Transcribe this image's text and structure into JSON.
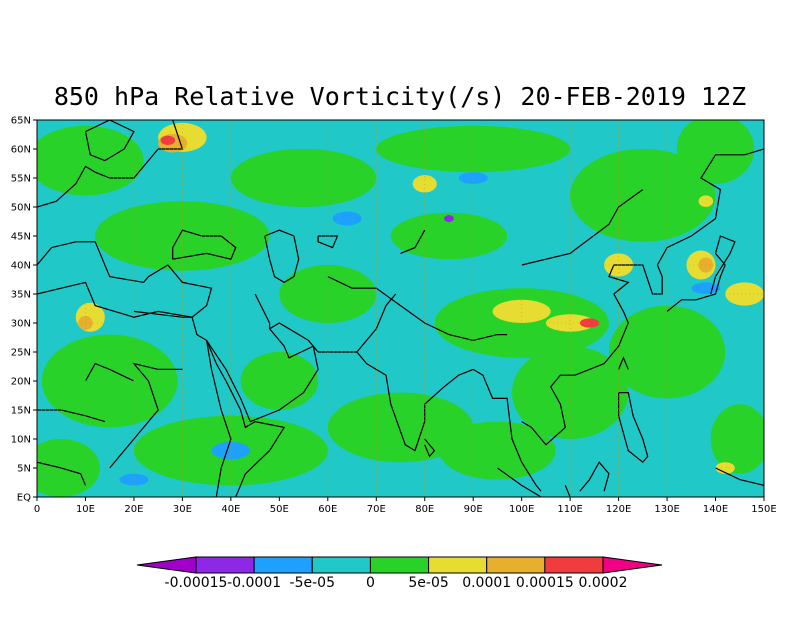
{
  "title": "850 hPa Relative Vorticity(/s) 20-FEB-2019 12Z",
  "map": {
    "lon_range": [
      0,
      150
    ],
    "lat_range": [
      0,
      65
    ],
    "grid": "dotted",
    "field_colors": {
      "base": "#20c8c8",
      "positive_low": "#28d228",
      "positive_mid": "#e6dc32",
      "positive_high": "#e6af2d",
      "positive_max": "#f03c3c",
      "negative_low": "#1ea0ff",
      "negative_mid": "#8c28e6",
      "coast": "#000000"
    },
    "lat_ticks": [
      "EQ",
      "5N",
      "10N",
      "15N",
      "20N",
      "25N",
      "30N",
      "35N",
      "40N",
      "45N",
      "50N",
      "55N",
      "60N",
      "65N"
    ],
    "lon_ticks": [
      "0",
      "10E",
      "20E",
      "30E",
      "40E",
      "50E",
      "60E",
      "70E",
      "80E",
      "90E",
      "100E",
      "110E",
      "120E",
      "130E",
      "140E",
      "150E"
    ]
  },
  "colorbar": {
    "colors": [
      "#a000c8",
      "#8c28e6",
      "#1ea0ff",
      "#20c8c8",
      "#28d228",
      "#e6dc32",
      "#e6af2d",
      "#f03c3c",
      "#f00082"
    ],
    "labels": [
      "-0.00015",
      "-0.0001",
      "-5e-05",
      "0",
      "5e-05",
      "0.0001",
      "0.00015",
      "0.0002"
    ]
  }
}
